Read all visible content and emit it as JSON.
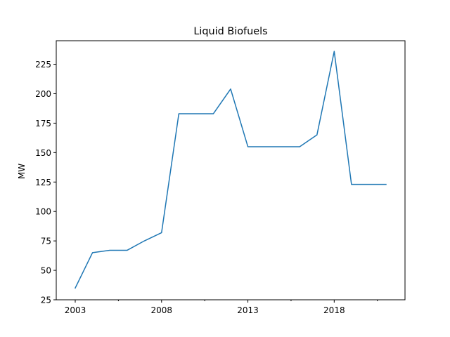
{
  "chart_data": {
    "type": "line",
    "title": "Liquid Biofuels",
    "xlabel": "",
    "ylabel": "MW",
    "x": [
      2003,
      2004,
      2005,
      2006,
      2007,
      2008,
      2009,
      2010,
      2011,
      2012,
      2013,
      2014,
      2015,
      2016,
      2017,
      2018,
      2019,
      2020,
      2021
    ],
    "series": [
      {
        "values": [
          35,
          65,
          67,
          67,
          75,
          82,
          183,
          183,
          183,
          204,
          155,
          155,
          155,
          155,
          165,
          236,
          123,
          123,
          123
        ],
        "color": "#1f77b4"
      }
    ],
    "xlim": [
      2001.9,
      2022.1
    ],
    "ylim": [
      25,
      245
    ],
    "xticks_major": [
      2003,
      2008,
      2013,
      2018
    ],
    "xticks_minor": [
      2005.5,
      2010.5,
      2015.5,
      2020.5
    ],
    "yticks": [
      25,
      50,
      75,
      100,
      125,
      150,
      175,
      200,
      225
    ],
    "grid": false,
    "legend": "none"
  }
}
